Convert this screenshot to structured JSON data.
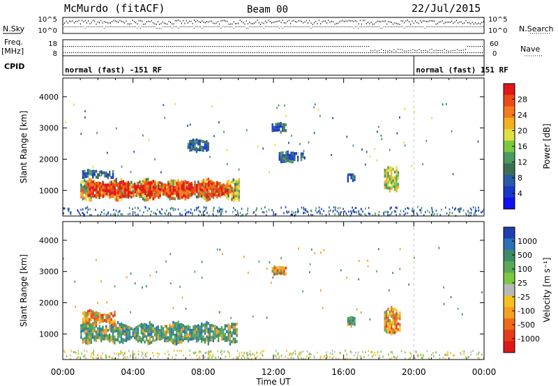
{
  "header": {
    "station": "McMurdo (fitACF)",
    "beam": "Beam 00",
    "date": "22/Jul/2015"
  },
  "param_panel": {
    "nsky_label": "N.Sky",
    "nsearch_label": "N.Search",
    "freq_label_1": "Freq.",
    "freq_label_2": "[MHz]",
    "nave_label": "Nave",
    "cpid_label": "CPID",
    "noise_left_ticks": [
      "10^5",
      "10^0"
    ],
    "noise_right_ticks": [
      "10^5",
      "10^0"
    ],
    "freq_ticks": [
      "18",
      "8"
    ],
    "nave_ticks": [
      "60",
      "0"
    ],
    "cpid_segments": [
      {
        "label": "normal (fast) -151 RF",
        "start_hour": 0,
        "end_hour": 20
      },
      {
        "label": "normal (fast) 151 RF",
        "start_hour": 20,
        "end_hour": 24
      }
    ]
  },
  "chart_data": [
    {
      "type": "heatmap",
      "name": "power",
      "xlabel": "",
      "ylabel": "Slant Range [km]",
      "xlim": [
        0,
        24
      ],
      "ylim": [
        180,
        4600
      ],
      "yticks": [
        "1000",
        "2000",
        "3000",
        "4000"
      ],
      "colorbar_label": "Power [dB]",
      "colorbar_ticks": [
        "28",
        "24",
        "20",
        "16",
        "12",
        "8",
        "4"
      ],
      "colorbar_colors": [
        "#e01818",
        "#ee4a18",
        "#f47a1c",
        "#f5b020",
        "#dde040",
        "#7cc840",
        "#4a9a62",
        "#3c7050",
        "#285aa8",
        "#1838c8",
        "#1010f0"
      ],
      "blobs": [
        {
          "t0": 1.0,
          "t1": 9.9,
          "r0": 650,
          "r1": 1450,
          "level": "high"
        },
        {
          "t0": 1.4,
          "t1": 9.6,
          "r0": 750,
          "r1": 1350,
          "level": "peak"
        },
        {
          "t0": 9.9,
          "t1": 10.0,
          "r0": 600,
          "r1": 1500,
          "level": "mid"
        },
        {
          "t0": 1.1,
          "t1": 2.9,
          "r0": 1400,
          "r1": 1700,
          "level": "low"
        },
        {
          "t0": 11.9,
          "t1": 12.7,
          "r0": 2900,
          "r1": 3200,
          "level": "low"
        },
        {
          "t0": 18.3,
          "t1": 19.1,
          "r0": 950,
          "r1": 1850,
          "level": "mid"
        },
        {
          "t0": 16.2,
          "t1": 16.6,
          "r0": 1250,
          "r1": 1600,
          "level": "low"
        },
        {
          "t0": 12.3,
          "t1": 13.8,
          "r0": 1900,
          "r1": 2300,
          "level": "low"
        },
        {
          "t0": 7.1,
          "t1": 8.3,
          "r0": 2200,
          "r1": 2700,
          "level": "low"
        }
      ]
    },
    {
      "type": "heatmap",
      "name": "velocity",
      "xlabel": "Time UT",
      "ylabel": "Slant Range [km]",
      "xlim": [
        0,
        24
      ],
      "ylim": [
        180,
        4600
      ],
      "xticks": [
        "00:00",
        "04:00",
        "08:00",
        "12:00",
        "16:00",
        "20:00",
        "00:00"
      ],
      "yticks": [
        "1000",
        "2000",
        "3000",
        "4000"
      ],
      "colorbar_label": "Velocity [m s⁻¹]",
      "colorbar_ticks": [
        "1000",
        "500",
        "100",
        "25",
        "-25",
        "-100",
        "-500",
        "-1000"
      ],
      "colorbar_colors": [
        "#1f3fae",
        "#2c70b8",
        "#3d8c68",
        "#5aaa58",
        "#7cc840",
        "#b8b8b8",
        "#f5c020",
        "#f5a020",
        "#ef6b1a",
        "#e83c18",
        "#e01818"
      ],
      "blobs": [
        {
          "t0": 1.0,
          "t1": 9.9,
          "r0": 650,
          "r1": 1450,
          "level": "mix"
        },
        {
          "t0": 1.1,
          "t1": 3.0,
          "r0": 1250,
          "r1": 1800,
          "level": "orange"
        },
        {
          "t0": 18.3,
          "t1": 19.2,
          "r0": 950,
          "r1": 1900,
          "level": "orange"
        },
        {
          "t0": 11.9,
          "t1": 12.7,
          "r0": 2900,
          "r1": 3200,
          "level": "orange"
        },
        {
          "t0": 16.2,
          "t1": 16.6,
          "r0": 1250,
          "r1": 1600,
          "level": "mix"
        }
      ]
    }
  ]
}
